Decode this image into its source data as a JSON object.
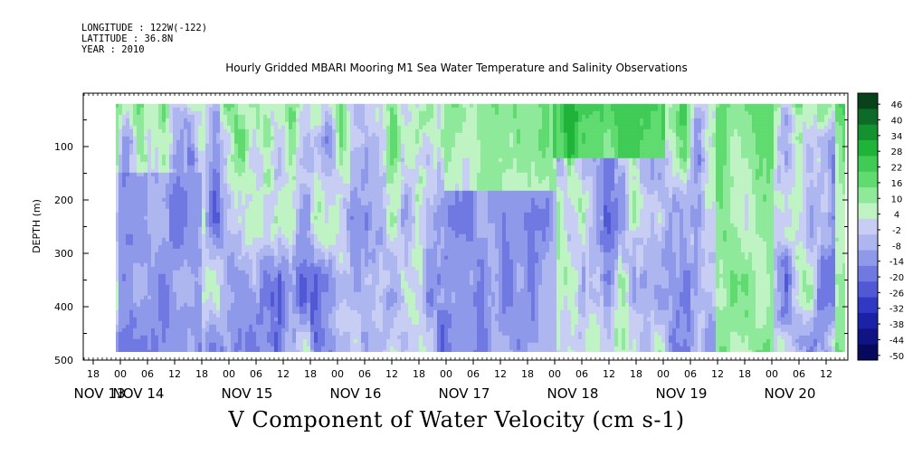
{
  "header": {
    "longitude": "LONGITUDE : 122W(-122)",
    "latitude": "LATITUDE : 36.8N",
    "year": "YEAR : 2010"
  },
  "chart_data": {
    "type": "heatmap",
    "title": "Hourly Gridded MBARI Mooring M1 Sea Water Temperature and Salinity Observations",
    "caption": "V Component of Water Velocity (cm s-1)",
    "ylabel": "DEPTH (m)",
    "ylim": [
      0,
      500
    ],
    "y_inverted": true,
    "y_ticks": [
      100,
      200,
      300,
      400,
      500
    ],
    "x_hour_ticks": [
      "18",
      "00",
      "06",
      "12",
      "18",
      "00",
      "06",
      "12",
      "18",
      "00",
      "06",
      "12",
      "18",
      "00",
      "06",
      "12",
      "18",
      "00",
      "06",
      "12",
      "18",
      "00",
      "06",
      "12",
      "18",
      "00",
      "06",
      "12"
    ],
    "x_day_labels": [
      "NOV 13",
      "NOV 14",
      "NOV 15",
      "NOV 16",
      "NOV 17",
      "NOV 18",
      "NOV 19",
      "NOV 20"
    ],
    "data_extent": {
      "start": "NOV 13 22:00",
      "end": "NOV 20 17:00",
      "depth_top": 20,
      "depth_bottom": 485
    },
    "colorbar": {
      "labels": [
        "46",
        "40",
        "34",
        "28",
        "22",
        "16",
        "10",
        "4",
        "-2",
        "-8",
        "-14",
        "-20",
        "-26",
        "-32",
        "-38",
        "-44",
        "-50"
      ],
      "colors": [
        "#08421a",
        "#0d6b27",
        "#14922f",
        "#20b33a",
        "#3fcb55",
        "#5fdb6f",
        "#8ee99a",
        "#bff3c4",
        "#c7cdf3",
        "#aeb6f0",
        "#8f99ea",
        "#7078e2",
        "#5058d6",
        "#3038c4",
        "#1c22a6",
        "#0f1384",
        "#07095e"
      ]
    },
    "features": [
      {
        "day": "NOV 17",
        "hour_start": 0,
        "hour_end": 24,
        "depth_start": 20,
        "depth_end": 180,
        "mean_v": 14
      },
      {
        "day": "NOV 18",
        "hour_start": 0,
        "hour_end": 24,
        "depth_start": 20,
        "depth_end": 120,
        "mean_v": 28
      },
      {
        "day": "NOV 19",
        "hour_start": 12,
        "hour_end": 24,
        "depth_start": 20,
        "depth_end": 485,
        "mean_v": 16
      },
      {
        "day": "NOV 20",
        "hour_start": 14,
        "hour_end": 17,
        "depth_start": 20,
        "depth_end": 485,
        "mean_v": 20
      },
      {
        "day": "NOV 17",
        "hour_start": 0,
        "hour_end": 24,
        "depth_start": 180,
        "depth_end": 485,
        "mean_v": -10
      },
      {
        "day": "NOV 14",
        "hour_start": 0,
        "hour_end": 18,
        "depth_start": 150,
        "depth_end": 485,
        "mean_v": -12
      }
    ]
  }
}
